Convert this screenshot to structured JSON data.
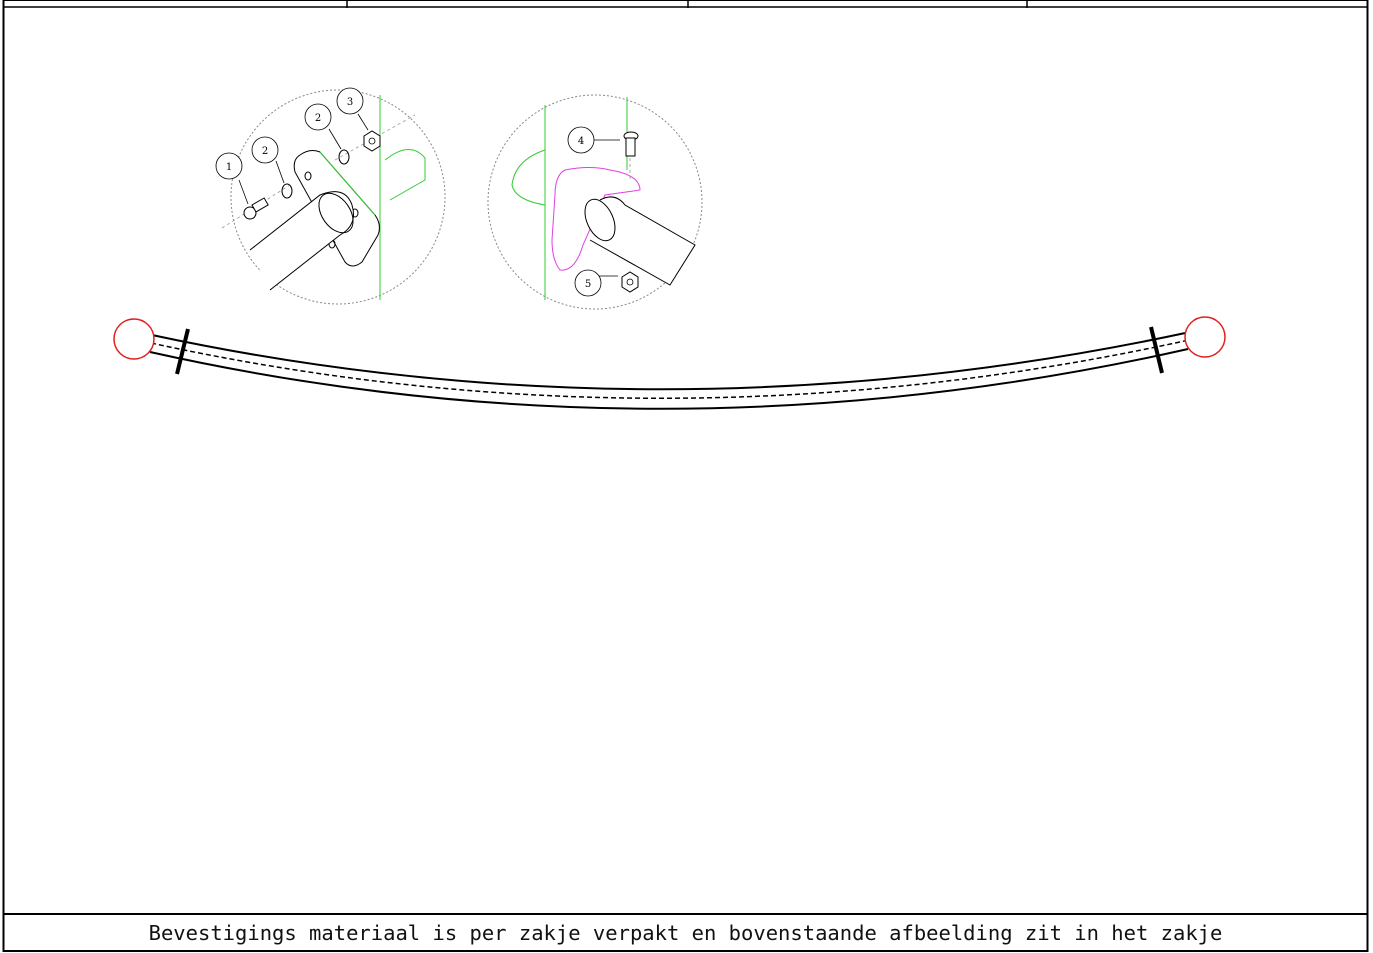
{
  "title_block": {
    "cells": [
      "",
      "",
      "",
      ""
    ]
  },
  "detail_left": {
    "callouts": [
      {
        "number": "1",
        "part": "bolt"
      },
      {
        "number": "2",
        "part": "washer"
      },
      {
        "number": "2",
        "part": "washer"
      },
      {
        "number": "3",
        "part": "nut"
      }
    ]
  },
  "detail_right": {
    "callouts": [
      {
        "number": "4",
        "part": "bolt"
      },
      {
        "number": "5",
        "part": "nut"
      }
    ]
  },
  "colors": {
    "outline": "#000000",
    "end_marker": "#e02020",
    "leader_line": "#9a9a9a",
    "plate_edge": "#33cc33",
    "bracket": "#e040e0"
  },
  "caption": "Bevestigings materiaal is per zakje verpakt en bovenstaande afbeelding zit in het zakje"
}
